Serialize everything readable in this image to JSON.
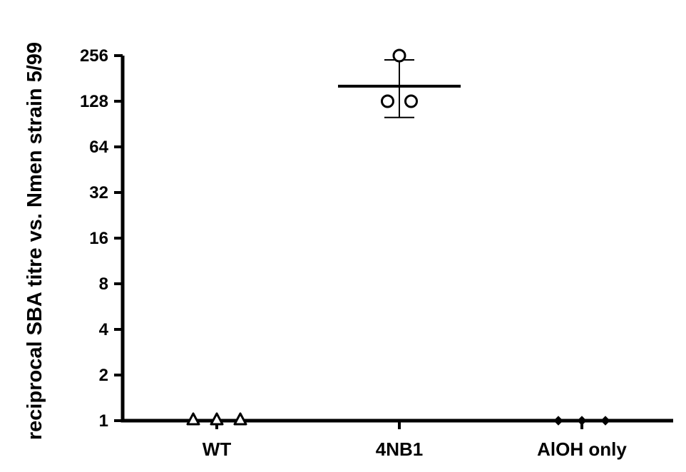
{
  "chart_data": {
    "type": "scatter",
    "ylabel": "reciprocal SBA titre vs. Nmen strain 5/99",
    "xlabel": "",
    "y_scale": "log2",
    "ylim": [
      1,
      256
    ],
    "y_ticks": [
      1,
      2,
      4,
      8,
      16,
      32,
      64,
      128,
      256
    ],
    "y_tick_labels": [
      "1",
      "2",
      "4",
      "8",
      "16",
      "32",
      "64",
      "128",
      "256"
    ],
    "categories": [
      "WT",
      "4NB1",
      "AlOH only"
    ],
    "groups": [
      {
        "category": "WT",
        "marker": "open-triangle",
        "points": [
          1,
          1,
          1
        ],
        "summary": null
      },
      {
        "category": "4NB1",
        "marker": "open-circle",
        "points": [
          256,
          128,
          128
        ],
        "summary": {
          "center": 161,
          "error_low": 100,
          "error_high": 240
        }
      },
      {
        "category": "AlOH only",
        "marker": "filled-diamond",
        "points": [
          1,
          1,
          1
        ],
        "summary": null
      }
    ],
    "grid": false,
    "legend": "none"
  }
}
